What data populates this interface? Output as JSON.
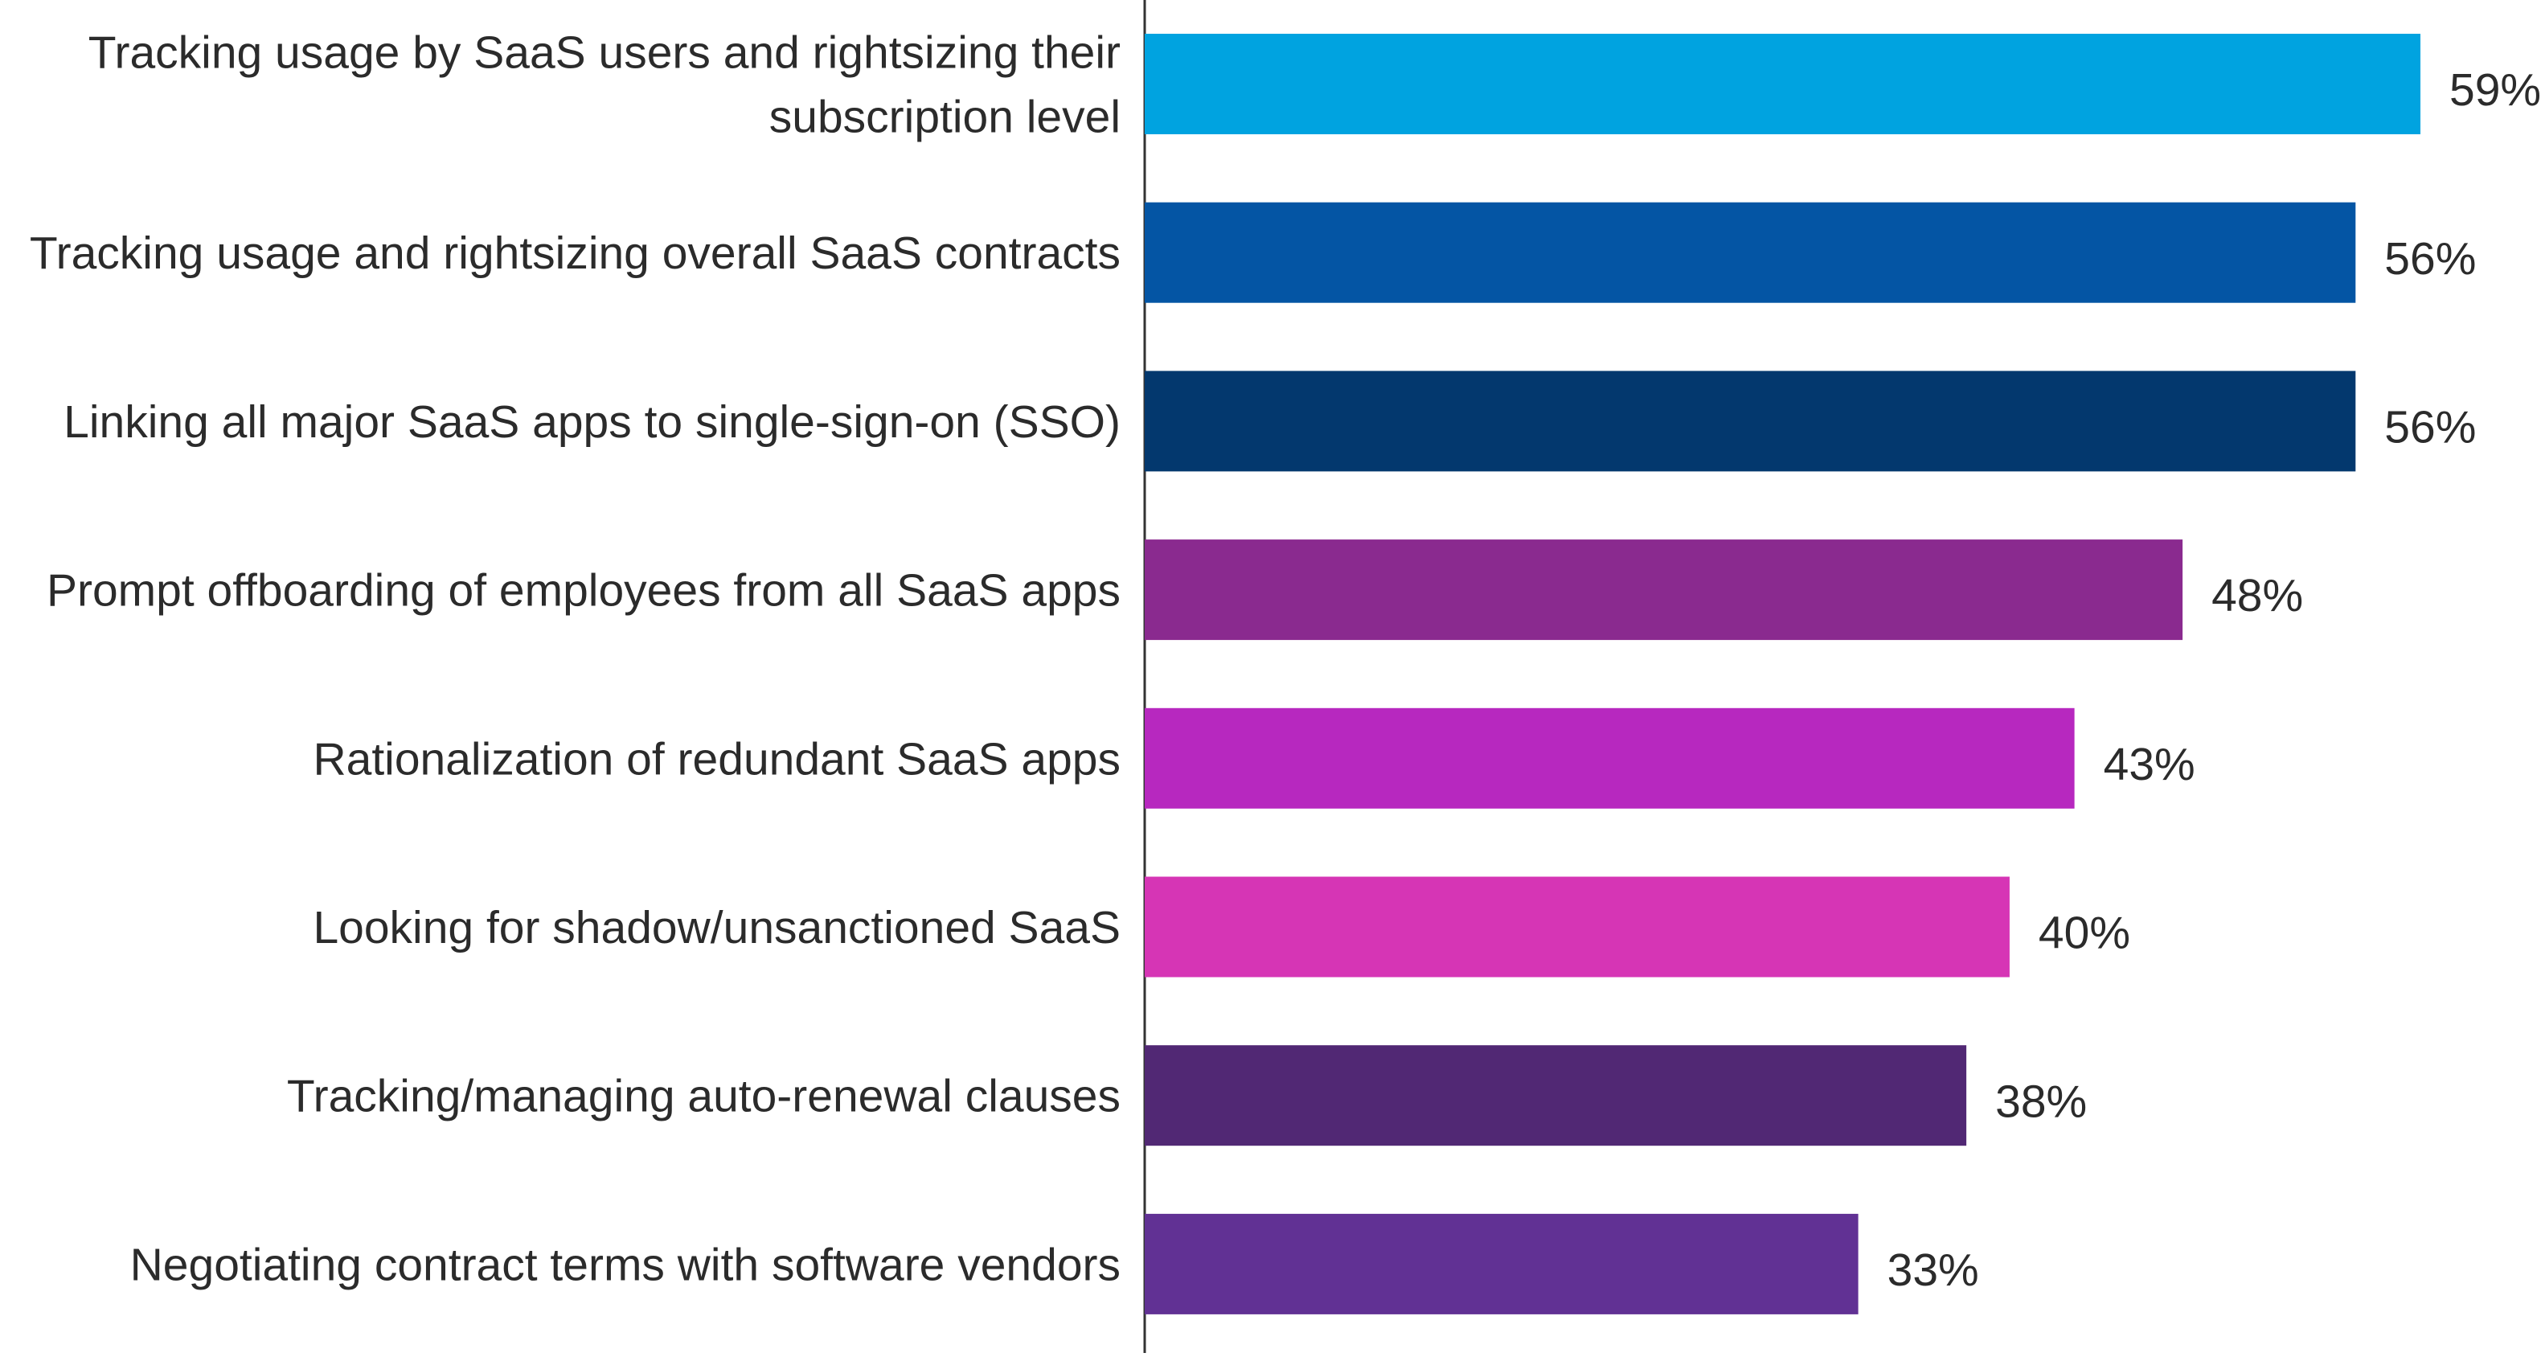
{
  "chart_data": {
    "type": "bar",
    "orientation": "horizontal",
    "title": "",
    "xlabel": "",
    "ylabel": "",
    "xlim": [
      0,
      59
    ],
    "grid": false,
    "value_suffix": "%",
    "categories": [
      [
        "Tracking usage by SaaS users and rightsizing their",
        "subscription level"
      ],
      [
        "Tracking usage and rightsizing overall SaaS contracts"
      ],
      [
        "Linking all major SaaS apps to single-sign-on (SSO)"
      ],
      [
        "Prompt offboarding of employees from all SaaS apps"
      ],
      [
        "Rationalization of redundant SaaS apps"
      ],
      [
        "Looking for shadow/unsanctioned SaaS"
      ],
      [
        "Tracking/managing auto-renewal clauses"
      ],
      [
        "Negotiating contract terms with software vendors"
      ]
    ],
    "values": [
      59,
      56,
      56,
      48,
      43,
      40,
      38,
      33
    ],
    "data_labels": [
      "59%",
      "56%",
      "56%",
      "48%",
      "43%",
      "40%",
      "38%",
      "33%"
    ],
    "colors": [
      "#00a3e0",
      "#0455a4",
      "#03386e",
      "#8a2a8f",
      "#b728bf",
      "#d635b5",
      "#512874",
      "#613194"
    ]
  }
}
